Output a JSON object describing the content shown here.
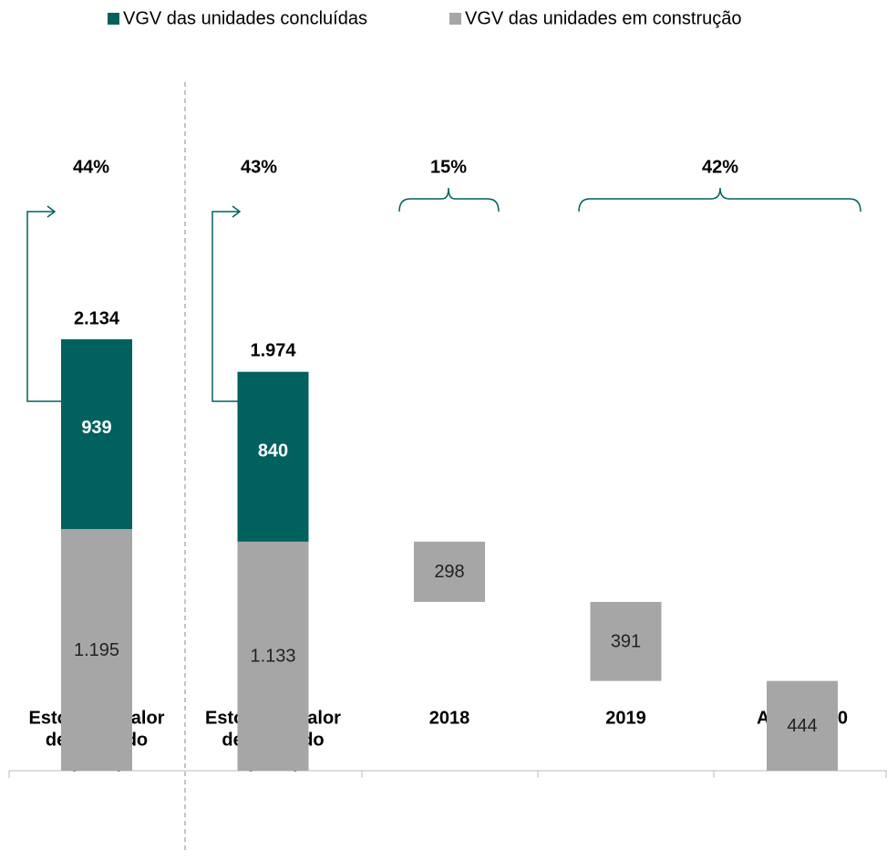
{
  "chart_data": {
    "type": "bar",
    "categories": [
      [
        "Estoque a valor",
        "de mercado",
        "(4T17)"
      ],
      [
        "Estoque a valor",
        "de mercado",
        "(1T18)"
      ],
      [
        "2018"
      ],
      [
        "2019"
      ],
      [
        "Após 2020"
      ]
    ],
    "series": [
      {
        "name": "VGV das unidades concluídas",
        "color": "#00615e",
        "values": [
          939,
          840,
          null,
          null,
          null
        ],
        "value_labels": [
          "939",
          "840",
          null,
          null,
          null
        ]
      },
      {
        "name": "VGV das unidades em construção",
        "color": "#a6a6a6",
        "values": [
          1195,
          1133,
          298,
          391,
          444
        ],
        "value_labels": [
          "1.195",
          "1.133",
          "298",
          "391",
          "444"
        ]
      }
    ],
    "totals": {
      "values": [
        2134,
        1974
      ],
      "value_labels": [
        "2.134",
        "1.974"
      ]
    },
    "shares": {
      "values": [
        44,
        43,
        15,
        42
      ],
      "value_labels": [
        "44%",
        "43%",
        "15%",
        "42%"
      ]
    }
  }
}
